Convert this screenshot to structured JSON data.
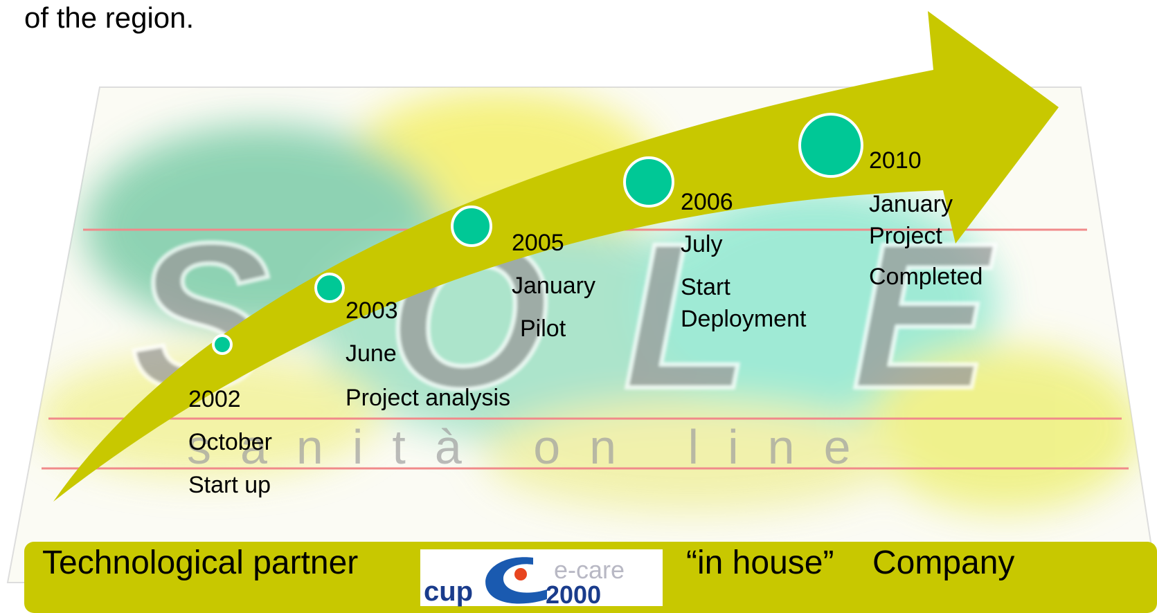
{
  "header": {
    "text": "of the region."
  },
  "background": {
    "letters": [
      "S",
      "O",
      "L",
      "E"
    ],
    "subtitle": "sanità on line"
  },
  "milestones": [
    {
      "year": "2002",
      "lines": [
        "October",
        "Start up"
      ]
    },
    {
      "year": "2003",
      "lines": [
        "June",
        "Project analysis"
      ]
    },
    {
      "year": "2005",
      "lines": [
        "January",
        "Pilot"
      ]
    },
    {
      "year": "2006",
      "lines": [
        "July",
        "Start",
        "Deployment"
      ]
    },
    {
      "year": "2010",
      "lines": [
        "January",
        "Project",
        "Completed"
      ]
    }
  ],
  "footer": {
    "left": "Technological partner",
    "logo": {
      "left": "cup",
      "top": "e-care",
      "bottom": "2000"
    },
    "quote": "“in house”",
    "right": "Company"
  }
}
